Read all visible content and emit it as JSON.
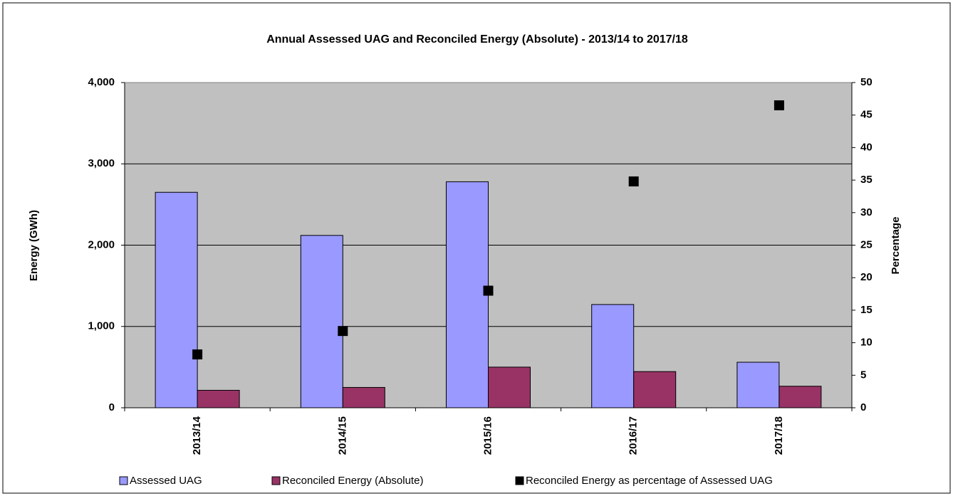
{
  "chart_data": {
    "type": "bar",
    "title": "Annual Assessed UAG and Reconciled Energy  (Absolute) - 2013/14 to 2017/18",
    "y_label": "Energy  (GWh)",
    "y2_label": "Percentage",
    "categories": [
      "2013/14",
      "2014/15",
      "2015/16",
      "2016/17",
      "2017/18"
    ],
    "series": [
      {
        "name": "Assessed UAG",
        "color": "#9999ff",
        "values": [
          2650,
          2120,
          2780,
          1270,
          560
        ]
      },
      {
        "name": "Reconciled Energy (Absolute)",
        "color": "#993366",
        "values": [
          215,
          250,
          500,
          445,
          265
        ]
      },
      {
        "name": "Reconciled Energy as percentage of Assessed UAG",
        "color": "#000000",
        "type": "scatter",
        "marker": "square",
        "axis": "y2",
        "values": [
          8.2,
          11.8,
          18,
          34.8,
          46.5
        ]
      }
    ],
    "ylim": [
      0,
      4000
    ],
    "yticks": [
      0,
      {
        "value": 1000,
        "label": "1,000"
      },
      {
        "value": 2000,
        "label": "2,000"
      },
      {
        "value": 3000,
        "label": "3,000"
      },
      {
        "value": 4000,
        "label": "4,000"
      }
    ],
    "y2lim": [
      0,
      50
    ],
    "y2ticks": [
      0,
      5,
      10,
      15,
      20,
      25,
      30,
      35,
      40,
      45,
      50
    ],
    "grid": true,
    "plot_background": "#c0c0c0",
    "legend": "bottom"
  }
}
